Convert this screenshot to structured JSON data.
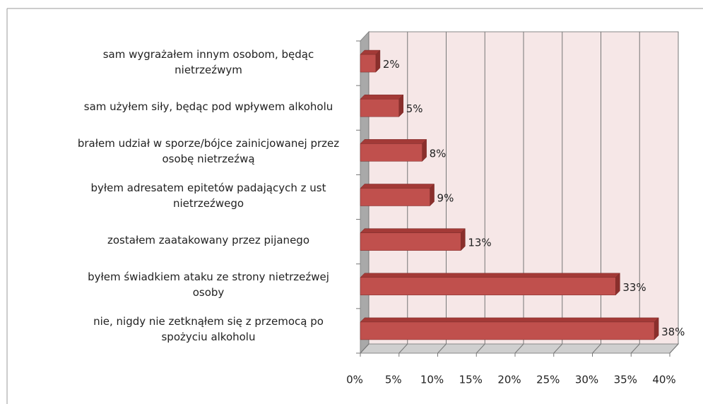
{
  "chart_data": {
    "type": "bar3d",
    "categories": [
      "sam wygrażałem innym osobom, będąc nietrzeźwym",
      "sam użyłem siły, będąc pod wpływem alkoholu",
      "brałem udział w sporze/bójce zainicjowanej przez osobę nietrzeźwą",
      "byłem adresatem epitetów padających z ust nietrzeźwego",
      "zostałem zaatakowany przez pijanego",
      "byłem świadkiem ataku ze strony nietrzeźwej osoby",
      "nie, nigdy nie zetknąłem się z przemocą po spożyciu alkoholu"
    ],
    "values": [
      2,
      5,
      8,
      9,
      13,
      33,
      38
    ],
    "value_labels": [
      "2%",
      "5%",
      "8%",
      "9%",
      "13%",
      "33%",
      "38%"
    ],
    "color": "#c0504d",
    "xlim": [
      0,
      40
    ],
    "xticks": [
      {
        "value": 0,
        "label": "0%"
      },
      {
        "value": 5,
        "label": "5%"
      },
      {
        "value": 10,
        "label": "10%"
      },
      {
        "value": 15,
        "label": "15%"
      },
      {
        "value": 20,
        "label": "20%"
      },
      {
        "value": 25,
        "label": "25%"
      },
      {
        "value": 30,
        "label": "30%"
      },
      {
        "value": 35,
        "label": "35%"
      },
      {
        "value": 40,
        "label": "40%"
      }
    ],
    "grid": true
  }
}
